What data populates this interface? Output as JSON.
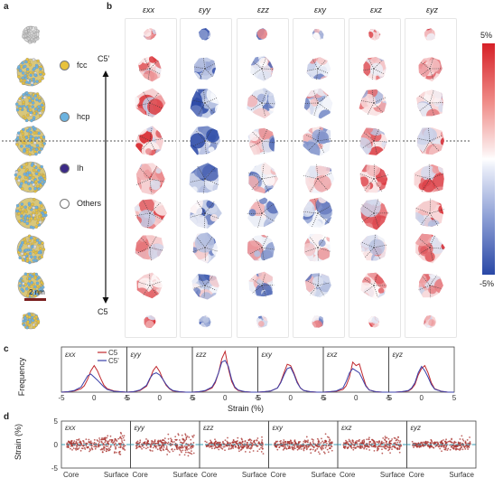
{
  "panel_labels": {
    "a": "a",
    "b": "b",
    "c": "c",
    "d": "d"
  },
  "legend": [
    {
      "label": "fcc",
      "color": "#e8c23c"
    },
    {
      "label": "hcp",
      "color": "#6bb3e0"
    },
    {
      "label": "Ih",
      "color": "#3b2a86"
    },
    {
      "label": "Others",
      "color": "#ffffff"
    }
  ],
  "column_headers": [
    "εxx",
    "εyy",
    "εzz",
    "εxy",
    "εxz",
    "εyz"
  ],
  "c5prime_label": "C5'",
  "c5_label": "C5",
  "scale_bar_label": "2 nm",
  "colorbar": {
    "top": "5%",
    "bottom": "-5%",
    "colors": [
      "#d62027",
      "#ffffff",
      "#2a48a6"
    ]
  },
  "panel_c": {
    "ylabel": "Frequency",
    "xlabel": "Strain (%)",
    "xticks": [
      "-5",
      "0",
      "5"
    ],
    "legend": [
      {
        "name": "C5",
        "color": "#c0282d"
      },
      {
        "name": "C5'",
        "color": "#3a3fa8"
      }
    ]
  },
  "panel_d": {
    "ylabel": "Strain (%)",
    "yticks": [
      "5",
      "0",
      "-5"
    ],
    "xlabels": [
      "Core",
      "Surface"
    ]
  },
  "chart_data": [
    {
      "type": "line",
      "title": "εxx",
      "x": [
        -5,
        -4,
        -3,
        -2,
        -1.5,
        -1,
        -0.5,
        0,
        0.5,
        1,
        1.5,
        2,
        3,
        4,
        5
      ],
      "series": [
        {
          "name": "C5",
          "values": [
            0,
            0.01,
            0.03,
            0.08,
            0.15,
            0.3,
            0.5,
            0.62,
            0.5,
            0.32,
            0.16,
            0.08,
            0.03,
            0.01,
            0
          ]
        },
        {
          "name": "C5'",
          "values": [
            0,
            0.01,
            0.04,
            0.12,
            0.25,
            0.38,
            0.42,
            0.35,
            0.28,
            0.2,
            0.12,
            0.06,
            0.02,
            0.01,
            0
          ]
        }
      ]
    },
    {
      "type": "line",
      "title": "εyy",
      "x": [
        -5,
        -4,
        -3,
        -2,
        -1.5,
        -1,
        -0.5,
        0,
        0.5,
        1,
        1.5,
        2,
        3,
        4,
        5
      ],
      "series": [
        {
          "name": "C5",
          "values": [
            0,
            0.01,
            0.04,
            0.14,
            0.3,
            0.5,
            0.6,
            0.48,
            0.3,
            0.16,
            0.08,
            0.03,
            0.01,
            0,
            0
          ]
        },
        {
          "name": "C5'",
          "values": [
            0,
            0.01,
            0.05,
            0.16,
            0.32,
            0.42,
            0.45,
            0.4,
            0.3,
            0.18,
            0.09,
            0.04,
            0.01,
            0,
            0
          ]
        }
      ]
    },
    {
      "type": "line",
      "title": "εzz",
      "x": [
        -5,
        -4,
        -3,
        -2,
        -1.5,
        -1,
        -0.5,
        0,
        0.5,
        1,
        1.5,
        2,
        3,
        4,
        5
      ],
      "series": [
        {
          "name": "C5",
          "values": [
            0,
            0.01,
            0.03,
            0.1,
            0.22,
            0.45,
            0.78,
            0.95,
            0.55,
            0.25,
            0.1,
            0.04,
            0.01,
            0,
            0
          ]
        },
        {
          "name": "C5'",
          "values": [
            0,
            0.01,
            0.04,
            0.12,
            0.25,
            0.45,
            0.7,
            0.74,
            0.6,
            0.3,
            0.12,
            0.05,
            0.01,
            0,
            0
          ]
        }
      ]
    },
    {
      "type": "line",
      "title": "εxy",
      "x": [
        -5,
        -4,
        -3,
        -2,
        -1.5,
        -1,
        -0.5,
        0,
        0.5,
        1,
        1.5,
        2,
        3,
        4,
        5
      ],
      "series": [
        {
          "name": "C5",
          "values": [
            0,
            0.01,
            0.03,
            0.1,
            0.24,
            0.45,
            0.65,
            0.62,
            0.45,
            0.25,
            0.1,
            0.04,
            0.01,
            0,
            0
          ]
        },
        {
          "name": "C5'",
          "values": [
            0,
            0.01,
            0.03,
            0.1,
            0.22,
            0.4,
            0.55,
            0.58,
            0.42,
            0.22,
            0.1,
            0.04,
            0.01,
            0,
            0
          ]
        }
      ]
    },
    {
      "type": "line",
      "title": "εxz",
      "x": [
        -5,
        -4,
        -3,
        -2,
        -1.5,
        -1,
        -0.5,
        0,
        0.5,
        1,
        1.5,
        2,
        3,
        4,
        5
      ],
      "series": [
        {
          "name": "C5",
          "values": [
            0,
            0.01,
            0.02,
            0.06,
            0.15,
            0.35,
            0.7,
            0.62,
            0.66,
            0.4,
            0.16,
            0.05,
            0.01,
            0,
            0
          ]
        },
        {
          "name": "C5'",
          "values": [
            0,
            0.01,
            0.03,
            0.1,
            0.25,
            0.45,
            0.55,
            0.5,
            0.45,
            0.3,
            0.14,
            0.05,
            0.01,
            0,
            0
          ]
        }
      ]
    },
    {
      "type": "line",
      "title": "εyz",
      "x": [
        -5,
        -4,
        -3,
        -2,
        -1.5,
        -1,
        -0.5,
        0,
        0.5,
        1,
        1.5,
        2,
        3,
        4,
        5
      ],
      "series": [
        {
          "name": "C5",
          "values": [
            0,
            0,
            0.01,
            0.03,
            0.08,
            0.18,
            0.4,
            0.55,
            0.62,
            0.45,
            0.22,
            0.08,
            0.02,
            0,
            0
          ]
        },
        {
          "name": "C5'",
          "values": [
            0,
            0,
            0.01,
            0.04,
            0.1,
            0.22,
            0.45,
            0.6,
            0.5,
            0.35,
            0.18,
            0.07,
            0.02,
            0,
            0
          ]
        }
      ]
    },
    {
      "type": "scatter",
      "title": "εxx",
      "ylim": [
        -5,
        5
      ],
      "spread_core": 1.2,
      "spread_surface": 3.4
    },
    {
      "type": "scatter",
      "title": "εyy",
      "ylim": [
        -5,
        5
      ],
      "spread_core": 1.0,
      "spread_surface": 3.6
    },
    {
      "type": "scatter",
      "title": "εzz",
      "ylim": [
        -5,
        5
      ],
      "spread_core": 1.0,
      "spread_surface": 2.8
    },
    {
      "type": "scatter",
      "title": "εxy",
      "ylim": [
        -5,
        5
      ],
      "spread_core": 1.0,
      "spread_surface": 3.0
    },
    {
      "type": "scatter",
      "title": "εxz",
      "ylim": [
        -5,
        5
      ],
      "spread_core": 1.2,
      "spread_surface": 2.6
    },
    {
      "type": "scatter",
      "title": "εyz",
      "ylim": [
        -5,
        5
      ],
      "spread_core": 0.8,
      "spread_surface": 2.2
    }
  ]
}
